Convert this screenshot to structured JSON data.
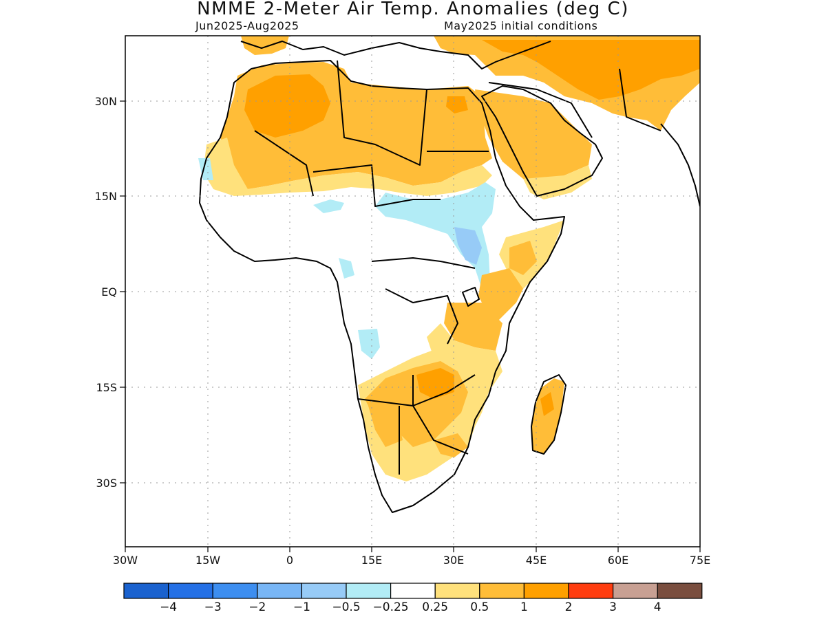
{
  "title": "NMME 2-Meter Air Temp. Anomalies (deg C)",
  "period": "Jun2025-Aug2025",
  "init": "May2025 initial conditions",
  "x_ticks": [
    "30W",
    "15W",
    "0",
    "15E",
    "30E",
    "45E",
    "60E",
    "75E"
  ],
  "y_ticks": [
    "30N",
    "15N",
    "EQ",
    "15S",
    "30S"
  ],
  "colorbar": {
    "labels": [
      "-4",
      "-3",
      "-2",
      "-1",
      "-0.5",
      "-0.25",
      "0.25",
      "0.5",
      "1",
      "2",
      "3",
      "4"
    ],
    "colors": [
      "#1a62cf",
      "#2470e6",
      "#3d8ef0",
      "#78b6f6",
      "#97cbf7",
      "#b2ecf6",
      "#ffffff",
      "#ffe17c",
      "#ffbd38",
      "#ffa000",
      "#ff3d10",
      "#c8a093",
      "#7a4e3f"
    ]
  },
  "legend_colors": {
    "anom_0_25_0_5": "#ffe17c",
    "anom_0_5_1": "#ffbd38",
    "anom_1_2": "#ffa000",
    "anom_neg_0_25": "#b2ecf6",
    "anom_neg_0_5": "#97cbf7",
    "anom_neg_1": "#78b6f6"
  }
}
